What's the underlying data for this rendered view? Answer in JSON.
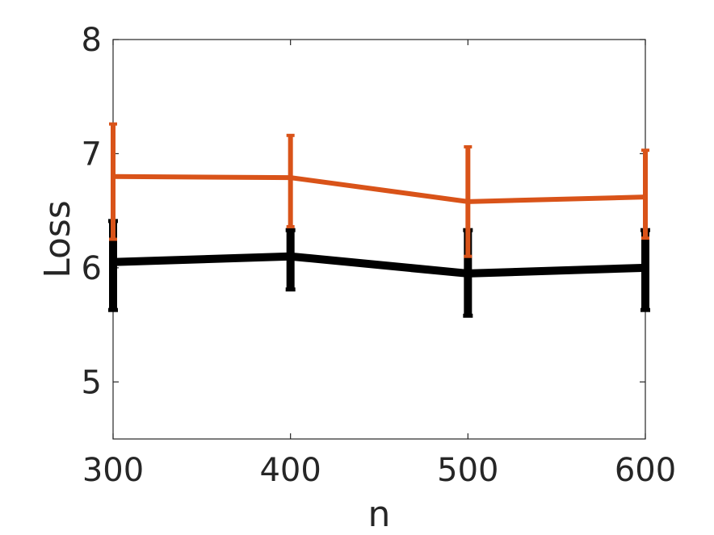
{
  "chart_data": {
    "type": "line",
    "title": "",
    "xlabel": "n",
    "ylabel": "Loss",
    "xlim": [
      300,
      600
    ],
    "ylim": [
      4.5,
      8
    ],
    "xticks": [
      300,
      400,
      500,
      600
    ],
    "yticks": [
      5,
      6,
      7,
      8
    ],
    "grid": false,
    "legend": "none",
    "x": [
      300,
      400,
      500,
      600
    ],
    "series": [
      {
        "color": "#D95319",
        "values": [
          6.8,
          6.79,
          6.58,
          6.62
        ],
        "err_low": [
          6.25,
          6.36,
          6.1,
          6.26
        ],
        "err_high": [
          7.26,
          7.16,
          7.06,
          7.03
        ]
      },
      {
        "color": "#000000",
        "values": [
          6.05,
          6.1,
          5.95,
          6.0
        ],
        "err_low": [
          5.63,
          5.81,
          5.58,
          5.63
        ],
        "err_high": [
          6.41,
          6.33,
          6.33,
          6.33
        ]
      }
    ]
  }
}
